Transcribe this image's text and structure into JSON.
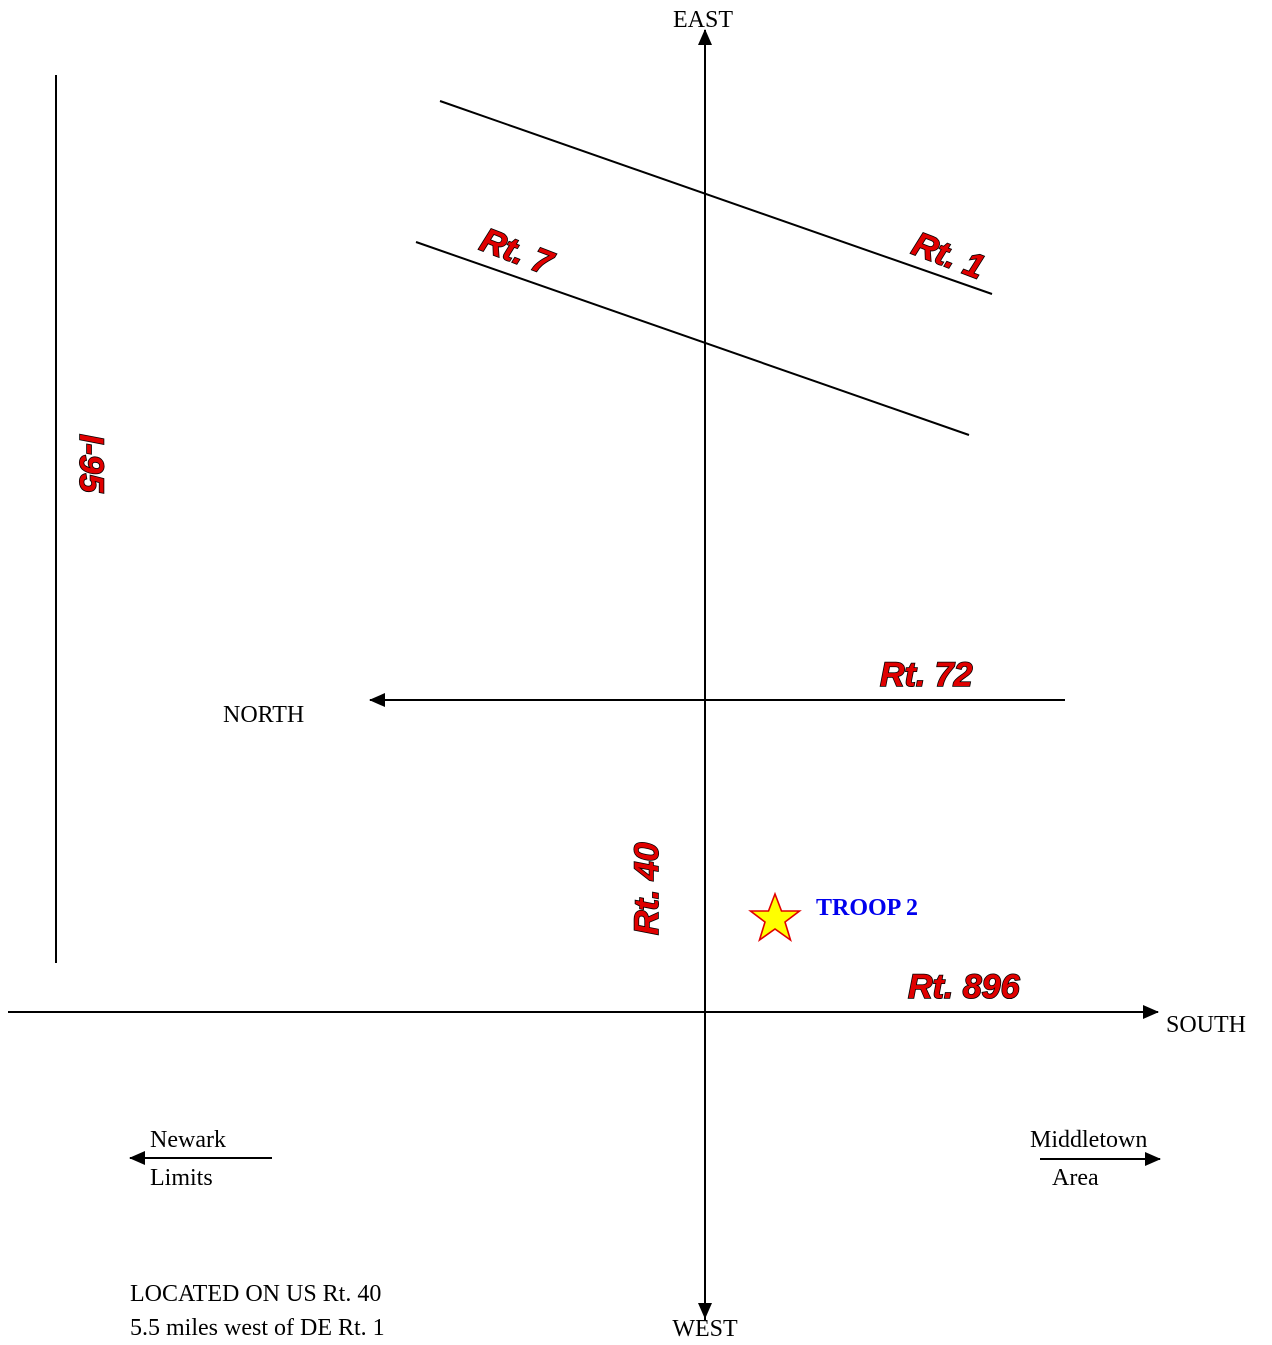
{
  "directions": {
    "east": "EAST",
    "west": "WEST",
    "north": "NORTH",
    "south": "SOUTH"
  },
  "roads": {
    "i95": "I-95",
    "rt1": "Rt. 1",
    "rt7": "Rt. 7",
    "rt72": "Rt. 72",
    "rt40": "Rt. 40",
    "rt896": "Rt. 896"
  },
  "marker": {
    "label": "TROOP 2",
    "icon": "star-icon",
    "fill_color": "#ffff00",
    "stroke_color": "#e00000",
    "label_color": "#0000ee"
  },
  "destinations": {
    "newark_line1": "Newark",
    "newark_line2": "Limits",
    "middletown_line1": "Middletown",
    "middletown_line2": "Area"
  },
  "location_note": {
    "line1": "LOCATED ON US Rt. 40",
    "line2": "5.5 miles west of DE  Rt. 1"
  },
  "colors": {
    "road_label": "#e00000",
    "road_label_outline": "#000000"
  }
}
